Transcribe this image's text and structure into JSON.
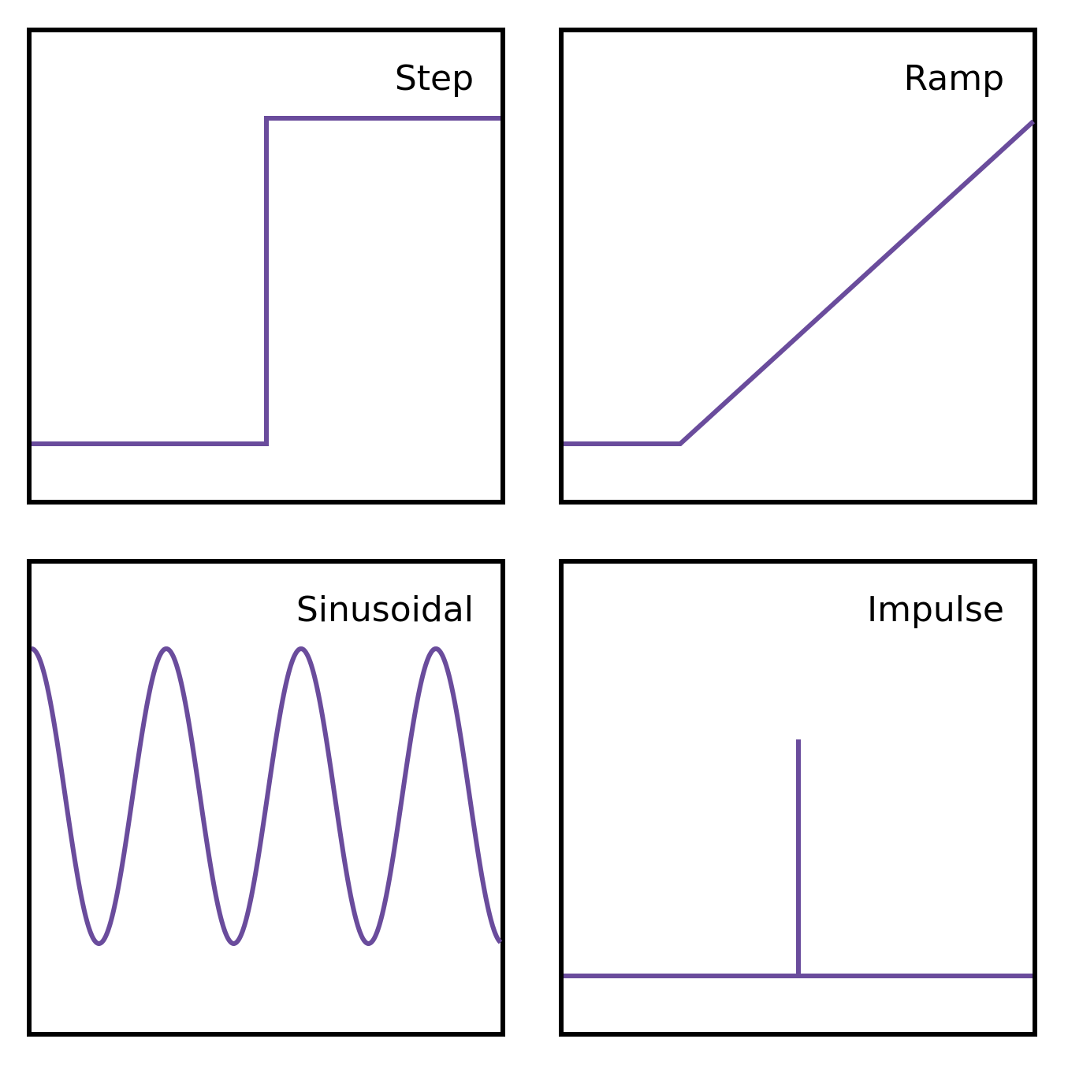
{
  "colors": {
    "signal": "#6a4c9c",
    "frame": "#000000",
    "background": "#ffffff"
  },
  "panels": [
    {
      "key": "step",
      "title": "Step"
    },
    {
      "key": "ramp",
      "title": "Ramp"
    },
    {
      "key": "sinusoidal",
      "title": "Sinusoidal"
    },
    {
      "key": "impulse",
      "title": "Impulse"
    }
  ]
}
